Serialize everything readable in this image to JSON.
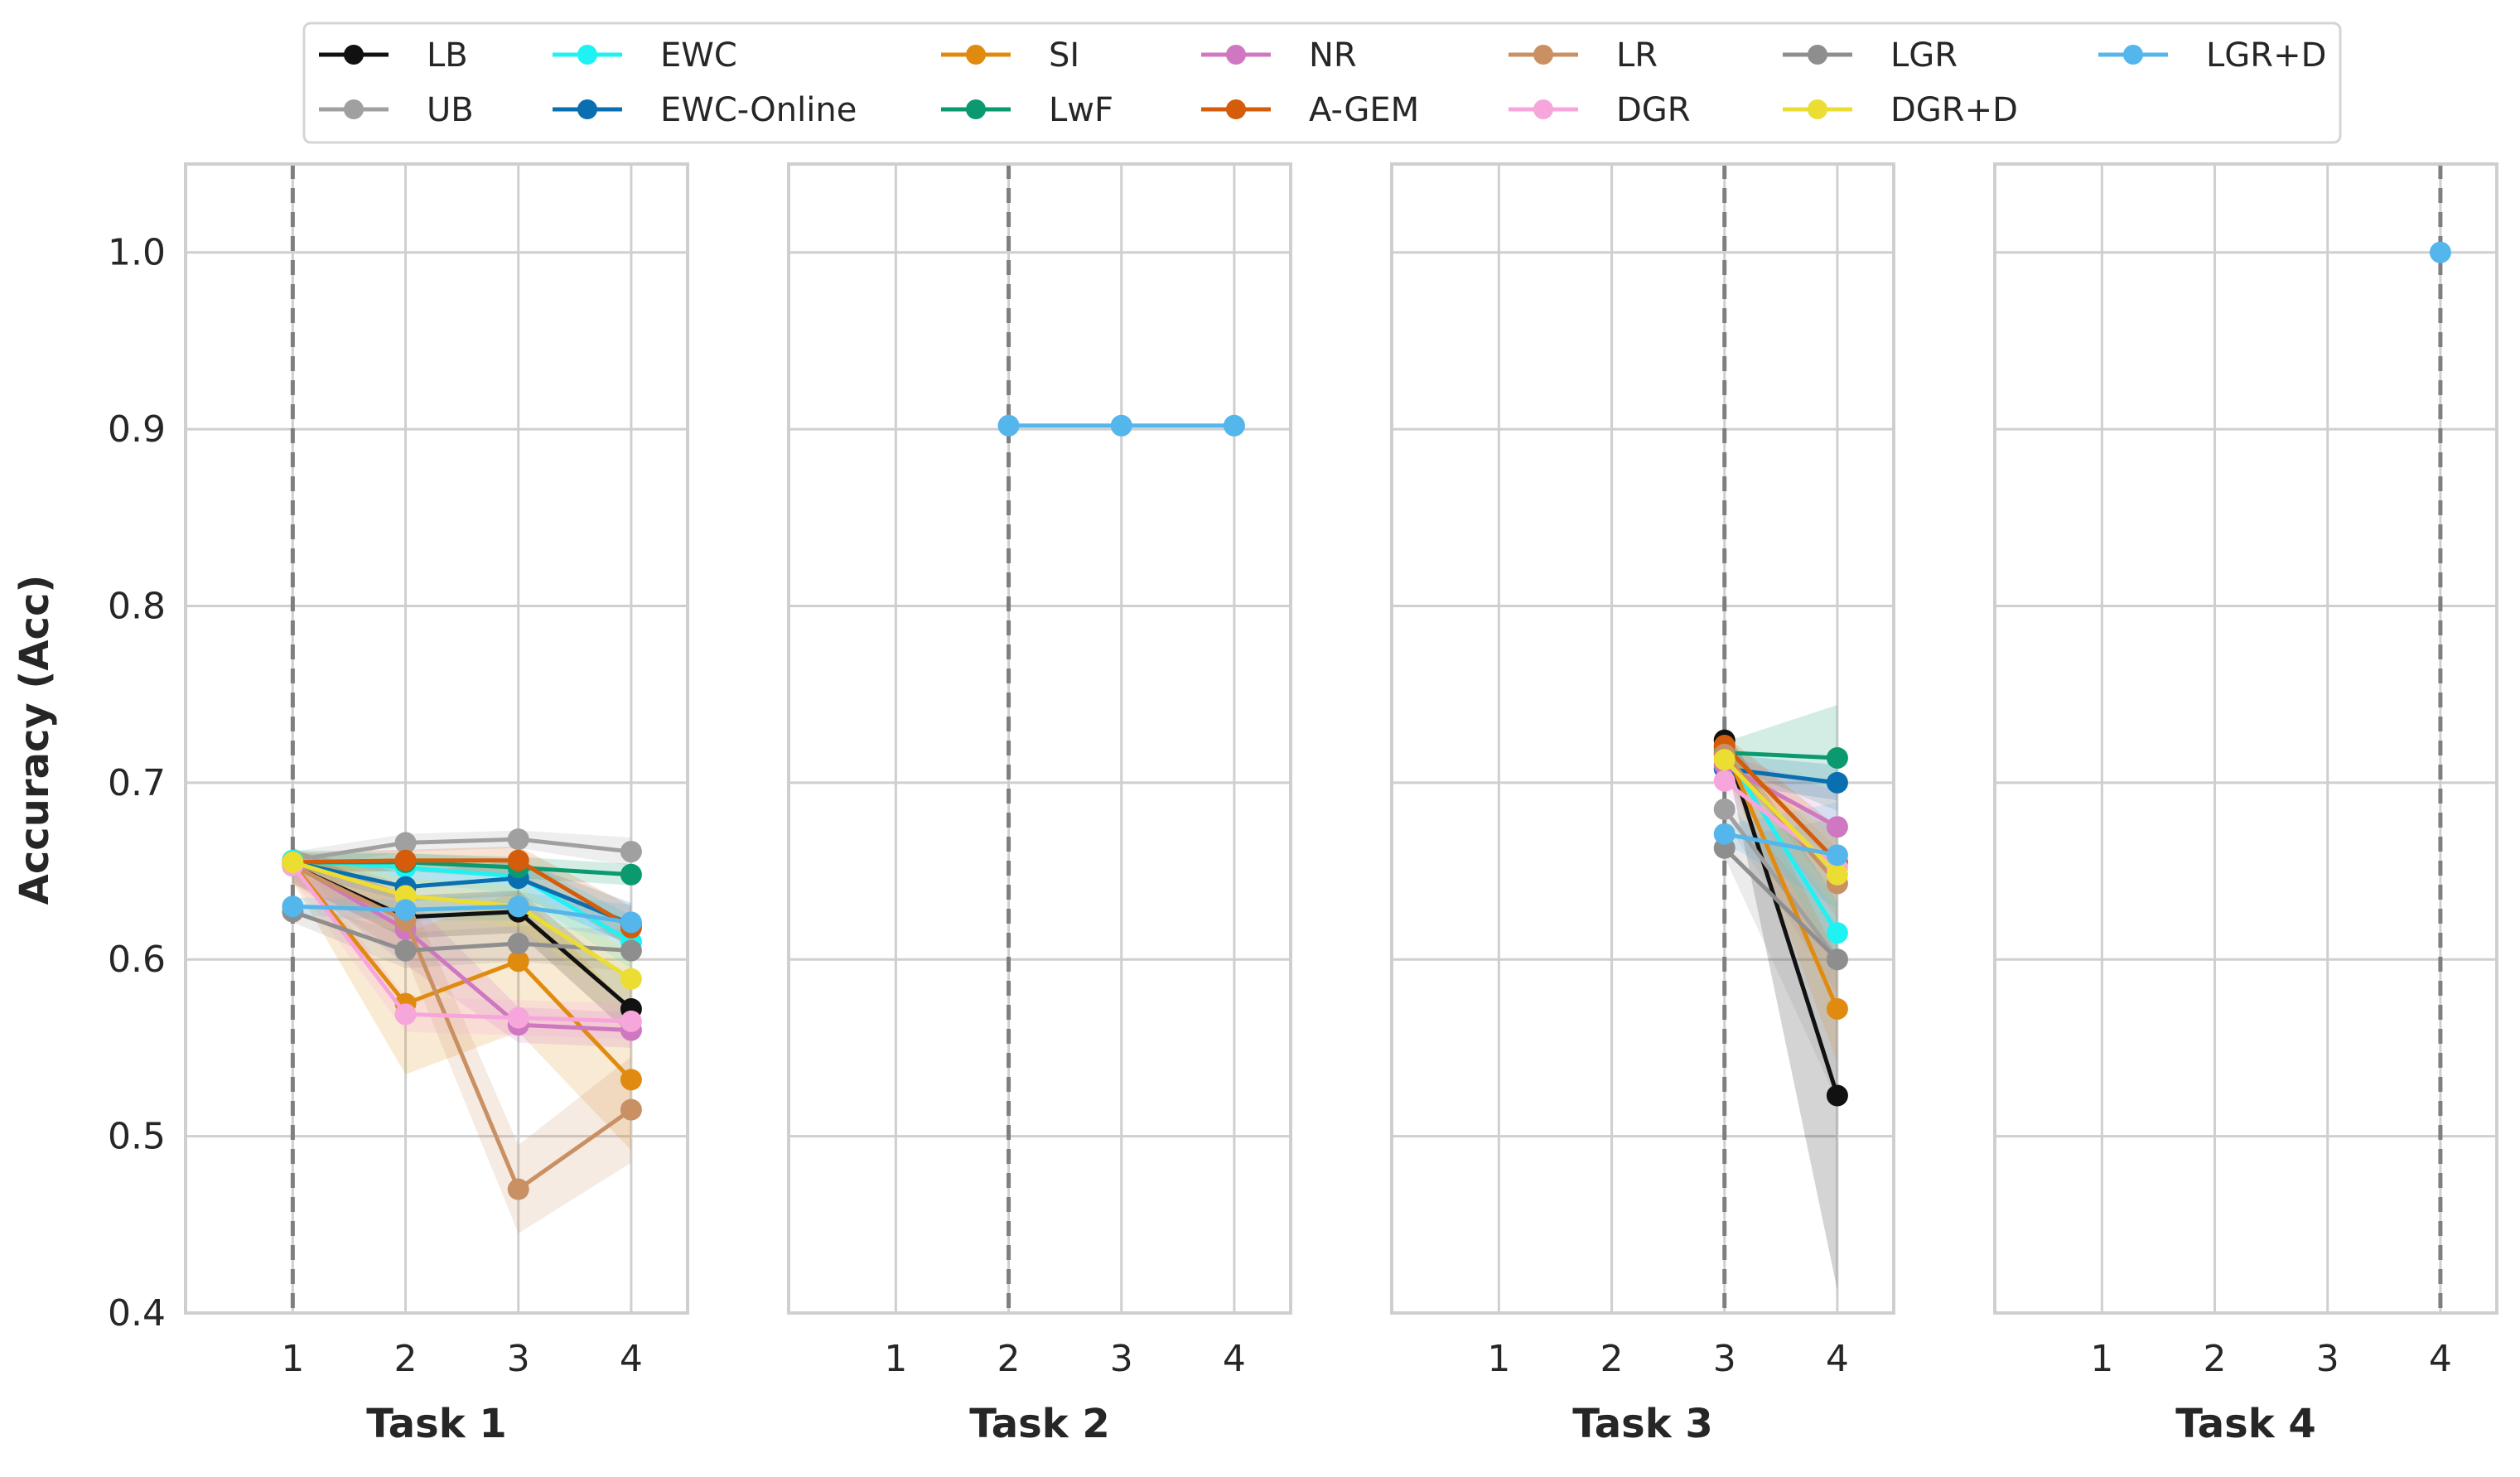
{
  "chart_data": {
    "type": "line",
    "ylabel": "Accuracy (Acc)",
    "ylim": [
      0.4,
      1.05
    ],
    "yticks": [
      0.4,
      0.5,
      0.6,
      0.7,
      0.8,
      0.9,
      1.0
    ],
    "ytick_labels": [
      "0.4",
      "0.5",
      "0.6",
      "0.7",
      "0.8",
      "0.9",
      "1.0"
    ],
    "xticks": [
      1,
      2,
      3,
      4
    ],
    "xtick_labels": [
      "1",
      "2",
      "3",
      "4"
    ],
    "xlim": [
      0.05,
      4.5
    ],
    "grid": true,
    "legend_position": "top",
    "series_styles": [
      {
        "name": "LB",
        "color": "#111111"
      },
      {
        "name": "UB",
        "color": "#a0a0a0"
      },
      {
        "name": "EWC",
        "color": "#1ff2f2"
      },
      {
        "name": "EWC-Online",
        "color": "#0a6fb0"
      },
      {
        "name": "SI",
        "color": "#e08b10"
      },
      {
        "name": "LwF",
        "color": "#0b9a70"
      },
      {
        "name": "NR",
        "color": "#cf77c0"
      },
      {
        "name": "A-GEM",
        "color": "#d45c0a"
      },
      {
        "name": "LR",
        "color": "#c99063"
      },
      {
        "name": "DGR",
        "color": "#f7a6dc"
      },
      {
        "name": "LGR",
        "color": "#8e8e8e"
      },
      {
        "name": "DGR+D",
        "color": "#ecdd33"
      },
      {
        "name": "LGR+D",
        "color": "#54b6ea"
      }
    ],
    "panels": [
      {
        "xlabel": "Task 1",
        "vline": 1,
        "series": [
          {
            "name": "LB",
            "x": [
              1,
              2,
              3,
              4
            ],
            "values": [
              0.653,
              0.624,
              0.627,
              0.572
            ],
            "band": [
              0.01,
              0.012,
              0.012,
              0.015
            ]
          },
          {
            "name": "UB",
            "x": [
              1,
              2,
              3,
              4
            ],
            "values": [
              0.656,
              0.666,
              0.668,
              0.661
            ],
            "band": [
              0.005,
              0.005,
              0.005,
              0.008
            ]
          },
          {
            "name": "EWC",
            "x": [
              1,
              2,
              3,
              4
            ],
            "values": [
              0.656,
              0.652,
              0.647,
              0.61
            ],
            "band": [
              0.006,
              0.008,
              0.01,
              0.015
            ]
          },
          {
            "name": "EWC-Online",
            "x": [
              1,
              2,
              3,
              4
            ],
            "values": [
              0.655,
              0.641,
              0.646,
              0.62
            ],
            "band": [
              0.006,
              0.008,
              0.01,
              0.012
            ]
          },
          {
            "name": "SI",
            "x": [
              1,
              2,
              3,
              4
            ],
            "values": [
              0.654,
              0.575,
              0.599,
              0.532
            ],
            "band": [
              0.01,
              0.04,
              0.04,
              0.04
            ]
          },
          {
            "name": "LwF",
            "x": [
              1,
              2,
              3,
              4
            ],
            "values": [
              0.655,
              0.655,
              0.652,
              0.648
            ],
            "band": [
              0.005,
              0.005,
              0.006,
              0.006
            ]
          },
          {
            "name": "NR",
            "x": [
              1,
              2,
              3,
              4
            ],
            "values": [
              0.654,
              0.617,
              0.563,
              0.56
            ],
            "band": [
              0.008,
              0.02,
              0.01,
              0.01
            ]
          },
          {
            "name": "A-GEM",
            "x": [
              1,
              2,
              3,
              4
            ],
            "values": [
              0.655,
              0.656,
              0.656,
              0.618
            ],
            "band": [
              0.006,
              0.006,
              0.008,
              0.012
            ]
          },
          {
            "name": "LR",
            "x": [
              1,
              2,
              3,
              4
            ],
            "values": [
              0.653,
              0.622,
              0.47,
              0.515
            ],
            "band": [
              0.01,
              0.02,
              0.025,
              0.03
            ]
          },
          {
            "name": "DGR",
            "x": [
              1,
              2,
              3,
              4
            ],
            "values": [
              0.653,
              0.569,
              0.567,
              0.565
            ],
            "band": [
              0.008,
              0.01,
              0.01,
              0.01
            ]
          },
          {
            "name": "LGR",
            "x": [
              1,
              2,
              3,
              4
            ],
            "values": [
              0.627,
              0.605,
              0.609,
              0.605
            ],
            "band": [
              0.006,
              0.01,
              0.01,
              0.012
            ]
          },
          {
            "name": "DGR+D",
            "x": [
              1,
              2,
              3,
              4
            ],
            "values": [
              0.655,
              0.636,
              0.63,
              0.589
            ],
            "band": [
              0.006,
              0.01,
              0.012,
              0.015
            ]
          },
          {
            "name": "LGR+D",
            "x": [
              1,
              2,
              3,
              4
            ],
            "values": [
              0.63,
              0.628,
              0.63,
              0.621
            ],
            "band": [
              0.005,
              0.006,
              0.008,
              0.01
            ]
          }
        ]
      },
      {
        "xlabel": "Task 2",
        "vline": 2,
        "series": [
          {
            "name": "LGR+D",
            "x": [
              2,
              3,
              4
            ],
            "values": [
              0.902,
              0.902,
              0.902
            ],
            "band": [
              0,
              0,
              0
            ]
          }
        ]
      },
      {
        "xlabel": "Task 3",
        "vline": 3,
        "series": [
          {
            "name": "LB",
            "x": [
              3,
              4
            ],
            "values": [
              0.724,
              0.523
            ],
            "band": [
              0.006,
              0.11
            ]
          },
          {
            "name": "UB",
            "x": [
              3,
              4
            ],
            "values": [
              0.685,
              0.6
            ],
            "band": [
              0.006,
              0.02
            ]
          },
          {
            "name": "EWC",
            "x": [
              3,
              4
            ],
            "values": [
              0.718,
              0.615
            ],
            "band": [
              0.008,
              0.02
            ]
          },
          {
            "name": "EWC-Online",
            "x": [
              3,
              4
            ],
            "values": [
              0.708,
              0.7
            ],
            "band": [
              0.008,
              0.01
            ]
          },
          {
            "name": "SI",
            "x": [
              3,
              4
            ],
            "values": [
              0.72,
              0.572
            ],
            "band": [
              0.008,
              0.03
            ]
          },
          {
            "name": "LwF",
            "x": [
              3,
              4
            ],
            "values": [
              0.717,
              0.714
            ],
            "band": [
              0.006,
              0.03
            ]
          },
          {
            "name": "NR",
            "x": [
              3,
              4
            ],
            "values": [
              0.71,
              0.675
            ],
            "band": [
              0.006,
              0.02
            ]
          },
          {
            "name": "A-GEM",
            "x": [
              3,
              4
            ],
            "values": [
              0.721,
              0.655
            ],
            "band": [
              0.006,
              0.02
            ]
          },
          {
            "name": "LR",
            "x": [
              3,
              4
            ],
            "values": [
              0.716,
              0.643
            ],
            "band": [
              0.006,
              0.02
            ]
          },
          {
            "name": "DGR",
            "x": [
              3,
              4
            ],
            "values": [
              0.701,
              0.652
            ],
            "band": [
              0.006,
              0.02
            ]
          },
          {
            "name": "LGR",
            "x": [
              3,
              4
            ],
            "values": [
              0.663,
              0.6
            ],
            "band": [
              0.005,
              0.08
            ]
          },
          {
            "name": "DGR+D",
            "x": [
              3,
              4
            ],
            "values": [
              0.713,
              0.648
            ],
            "band": [
              0.006,
              0.02
            ]
          },
          {
            "name": "LGR+D",
            "x": [
              3,
              4
            ],
            "values": [
              0.671,
              0.659
            ],
            "band": [
              0.005,
              0.03
            ]
          }
        ]
      },
      {
        "xlabel": "Task 4",
        "vline": 4,
        "series": [
          {
            "name": "LGR+D",
            "x": [
              4
            ],
            "values": [
              1.0
            ],
            "band": [
              0
            ]
          }
        ]
      }
    ]
  }
}
